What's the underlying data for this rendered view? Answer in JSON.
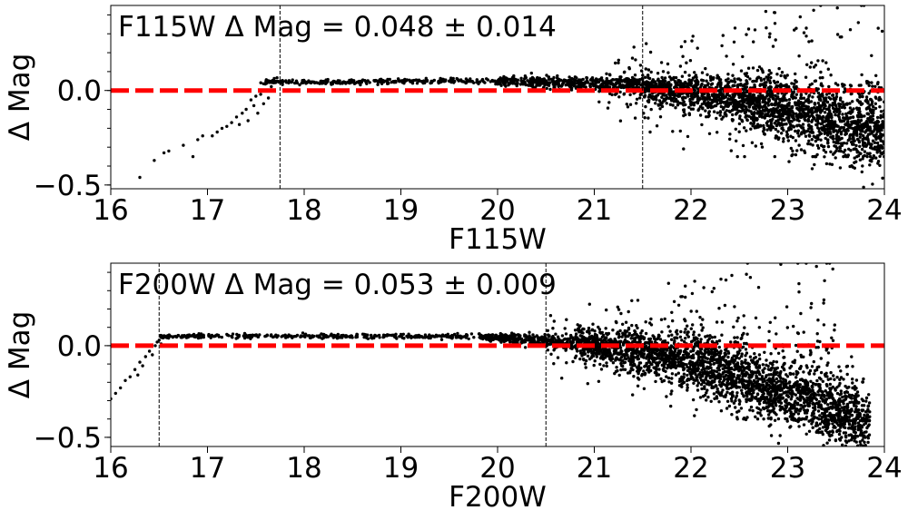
{
  "chart_data": [
    {
      "type": "scatter",
      "annotation": "F115W Δ Mag = 0.048 ± 0.014",
      "xlabel": "F115W",
      "ylabel": "Δ Mag",
      "xlim": [
        16,
        24
      ],
      "ylim": [
        -0.52,
        0.45
      ],
      "xticks": [
        16,
        17,
        18,
        19,
        20,
        21,
        22,
        23,
        24
      ],
      "yticks": [
        -0.5,
        0.0
      ],
      "ytick_labels": [
        "−0.5",
        "0.0"
      ],
      "reference_line": 0.0,
      "reference_color": "#ff0000",
      "marker_color": "#000000",
      "vlines": [
        17.75,
        21.5
      ],
      "seed": 11,
      "bright_points": [
        [
          16.3,
          -0.46
        ],
        [
          16.45,
          -0.37
        ],
        [
          16.55,
          -0.33
        ],
        [
          16.6,
          -0.32
        ],
        [
          16.75,
          -0.29
        ],
        [
          16.85,
          -0.35
        ],
        [
          16.9,
          -0.26
        ],
        [
          16.95,
          -0.24
        ],
        [
          17.05,
          -0.24
        ],
        [
          17.1,
          -0.22
        ],
        [
          17.15,
          -0.2
        ],
        [
          17.2,
          -0.19
        ],
        [
          17.25,
          -0.17
        ],
        [
          17.3,
          -0.14
        ],
        [
          17.33,
          -0.18
        ],
        [
          17.36,
          -0.12
        ],
        [
          17.4,
          -0.1
        ],
        [
          17.42,
          -0.16
        ],
        [
          17.45,
          -0.05
        ],
        [
          17.48,
          -0.08
        ],
        [
          17.5,
          -0.03
        ],
        [
          17.52,
          -0.12
        ],
        [
          17.55,
          -0.02
        ],
        [
          17.58,
          -0.07
        ],
        [
          17.6,
          0.0
        ],
        [
          17.63,
          -0.04
        ],
        [
          17.66,
          0.02
        ]
      ],
      "segments": [
        {
          "x0": 17.55,
          "x1": 20.0,
          "n": 280,
          "center": [
            0.045,
            0.05
          ],
          "spread": [
            0.006,
            0.008
          ]
        },
        {
          "x0": 20.0,
          "x1": 21.5,
          "n": 480,
          "center": [
            0.05,
            0.03
          ],
          "spread": [
            0.012,
            0.025
          ]
        },
        {
          "x0": 21.5,
          "x1": 22.5,
          "n": 650,
          "center": [
            0.02,
            -0.04
          ],
          "spread": [
            0.03,
            0.06
          ]
        },
        {
          "x0": 22.5,
          "x1": 24.0,
          "n": 1400,
          "center": [
            -0.05,
            -0.22
          ],
          "spread": [
            0.07,
            0.11
          ]
        }
      ],
      "outliers": {
        "x0": 21.0,
        "x1": 24.0,
        "n": 260,
        "y0": -0.35,
        "y1": 0.45
      }
    },
    {
      "type": "scatter",
      "annotation": "F200W Δ Mag = 0.053 ± 0.009",
      "xlabel": "F200W",
      "ylabel": "Δ Mag",
      "xlim": [
        16,
        24
      ],
      "ylim": [
        -0.55,
        0.45
      ],
      "xticks": [
        16,
        17,
        18,
        19,
        20,
        21,
        22,
        23,
        24
      ],
      "yticks": [
        -0.5,
        0.0
      ],
      "ytick_labels": [
        "−0.5",
        "0.0"
      ],
      "reference_line": 0.0,
      "reference_color": "#ff0000",
      "marker_color": "#000000",
      "vlines": [
        16.5,
        20.5
      ],
      "seed": 29,
      "bright_points": [
        [
          16.0,
          -0.29
        ],
        [
          16.05,
          -0.26
        ],
        [
          16.1,
          -0.23
        ],
        [
          16.15,
          -0.19
        ],
        [
          16.2,
          -0.17
        ],
        [
          16.25,
          -0.13
        ],
        [
          16.28,
          -0.16
        ],
        [
          16.3,
          -0.09
        ],
        [
          16.33,
          -0.11
        ],
        [
          16.36,
          -0.06
        ],
        [
          16.4,
          -0.03
        ],
        [
          16.43,
          -0.05
        ],
        [
          16.46,
          0.0
        ],
        [
          16.48,
          0.02
        ],
        [
          16.5,
          0.03
        ],
        [
          16.52,
          0.01
        ]
      ],
      "segments": [
        {
          "x0": 16.5,
          "x1": 19.8,
          "n": 340,
          "center": [
            0.053,
            0.05
          ],
          "spread": [
            0.005,
            0.007
          ]
        },
        {
          "x0": 19.8,
          "x1": 20.8,
          "n": 320,
          "center": [
            0.05,
            0.02
          ],
          "spread": [
            0.01,
            0.02
          ]
        },
        {
          "x0": 20.8,
          "x1": 22.0,
          "n": 900,
          "center": [
            0.02,
            -0.08
          ],
          "spread": [
            0.04,
            0.07
          ]
        },
        {
          "x0": 22.0,
          "x1": 23.85,
          "n": 1700,
          "center": [
            -0.08,
            -0.42
          ],
          "spread": [
            0.08,
            0.1
          ]
        }
      ],
      "outliers": {
        "x0": 20.5,
        "x1": 23.5,
        "n": 300,
        "y0": -0.4,
        "y1": 0.45
      }
    }
  ]
}
